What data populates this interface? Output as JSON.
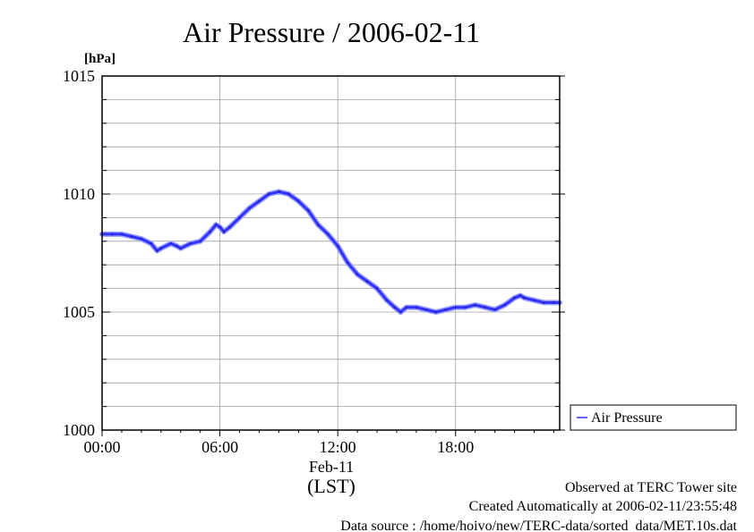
{
  "chart_data": {
    "type": "line",
    "title": "Air Pressure / 2006-02-11",
    "ylabel": "[hPa]",
    "ylim": [
      1000,
      1015
    ],
    "yticks": [
      1000,
      1005,
      1010,
      1015
    ],
    "xlim": [
      0,
      23.3
    ],
    "xticks": [
      {
        "value": 0,
        "label": "00:00"
      },
      {
        "value": 6,
        "label": "06:00"
      },
      {
        "value": 12,
        "label": "12:00"
      },
      {
        "value": 18,
        "label": "18:00"
      }
    ],
    "xdate": "Feb-11",
    "xunit": "(LST)",
    "grid": true,
    "legend_position": "right",
    "series": [
      {
        "name": "Air Pressure",
        "color": "#3333ff",
        "x": [
          0,
          0.5,
          1.0,
          1.5,
          2.0,
          2.5,
          2.8,
          3.0,
          3.5,
          3.8,
          4.0,
          4.5,
          5.0,
          5.5,
          5.8,
          6.0,
          6.2,
          6.5,
          7.0,
          7.5,
          8.0,
          8.5,
          9.0,
          9.5,
          10.0,
          10.5,
          11.0,
          11.5,
          12.0,
          12.5,
          13.0,
          13.5,
          14.0,
          14.5,
          14.9,
          15.2,
          15.5,
          16.0,
          16.5,
          17.0,
          17.5,
          18.0,
          18.5,
          19.0,
          19.5,
          20.0,
          20.5,
          21.0,
          21.3,
          21.5,
          22.0,
          22.5,
          23.0,
          23.3
        ],
        "y": [
          1008.3,
          1008.3,
          1008.3,
          1008.2,
          1008.1,
          1007.9,
          1007.6,
          1007.7,
          1007.9,
          1007.8,
          1007.7,
          1007.9,
          1008.0,
          1008.4,
          1008.7,
          1008.6,
          1008.4,
          1008.6,
          1009.0,
          1009.4,
          1009.7,
          1010.0,
          1010.1,
          1010.0,
          1009.7,
          1009.3,
          1008.7,
          1008.3,
          1007.8,
          1007.1,
          1006.6,
          1006.3,
          1006.0,
          1005.5,
          1005.2,
          1005.0,
          1005.2,
          1005.2,
          1005.1,
          1005.0,
          1005.1,
          1005.2,
          1005.2,
          1005.3,
          1005.2,
          1005.1,
          1005.3,
          1005.6,
          1005.7,
          1005.6,
          1005.5,
          1005.4,
          1005.4,
          1005.4
        ]
      }
    ]
  },
  "footer": {
    "site": "Observed at TERC Tower site",
    "created": "Created Automatically at 2006-02-11/23:55:48",
    "source": "Data source : /home/hoivo/new/TERC-data/sorted  data/MET.10s.dat"
  },
  "colors": {
    "series": "#3333ff",
    "grid": "#a0a0a0",
    "axis": "#000000"
  }
}
